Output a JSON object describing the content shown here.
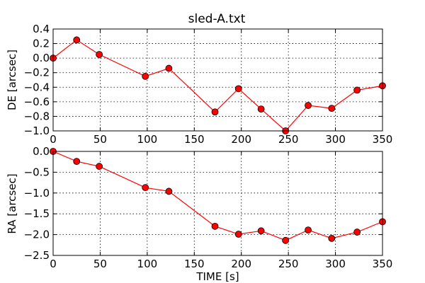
{
  "figure": {
    "title": "sled-A.txt"
  },
  "colors": {
    "series": "#ff0000",
    "marker_edge": "#000000"
  },
  "chart_data": [
    {
      "type": "line",
      "title": "sled-A.txt",
      "xlabel": "",
      "ylabel": "DE [arcsec]",
      "xlim": [
        0,
        350
      ],
      "ylim": [
        -1.0,
        0.4
      ],
      "xticks": [
        0,
        50,
        100,
        150,
        200,
        250,
        300,
        350
      ],
      "xtick_labels": [
        "0",
        "50",
        "100",
        "150",
        "200",
        "250",
        "300",
        "350"
      ],
      "yticks": [
        -1.0,
        -0.8,
        -0.6,
        -0.4,
        -0.2,
        0.0,
        0.2,
        0.4
      ],
      "ytick_labels": [
        "−1.0",
        "−0.8",
        "−0.6",
        "−0.4",
        "−0.2",
        "0.0",
        "0.2",
        "0.4"
      ],
      "grid": true,
      "x": [
        0,
        25,
        49,
        98,
        123,
        172,
        197,
        221,
        247,
        271,
        296,
        323,
        350
      ],
      "series": [
        {
          "values": [
            0.0,
            0.25,
            0.05,
            -0.25,
            -0.14,
            -0.74,
            -0.42,
            -0.7,
            -1.0,
            -0.65,
            -0.69,
            -0.44,
            -0.38
          ]
        }
      ]
    },
    {
      "type": "line",
      "title": "",
      "xlabel": "TIME [s]",
      "ylabel": "RA [arcsec]",
      "xlim": [
        0,
        350
      ],
      "ylim": [
        -2.5,
        0.0
      ],
      "xticks": [
        0,
        50,
        100,
        150,
        200,
        250,
        300,
        350
      ],
      "xtick_labels": [
        "0",
        "50",
        "100",
        "150",
        "200",
        "250",
        "300",
        "350"
      ],
      "yticks": [
        -2.5,
        -2.0,
        -1.5,
        -1.0,
        -0.5,
        0.0
      ],
      "ytick_labels": [
        "−2.5",
        "−2.0",
        "−1.5",
        "−1.0",
        "−0.5",
        "0.0"
      ],
      "grid": true,
      "x": [
        0,
        25,
        49,
        98,
        123,
        172,
        197,
        221,
        247,
        271,
        296,
        323,
        350
      ],
      "series": [
        {
          "values": [
            0.0,
            -0.24,
            -0.36,
            -0.87,
            -0.96,
            -1.8,
            -1.99,
            -1.91,
            -2.14,
            -1.89,
            -2.09,
            -1.94,
            -1.69
          ]
        }
      ]
    }
  ]
}
